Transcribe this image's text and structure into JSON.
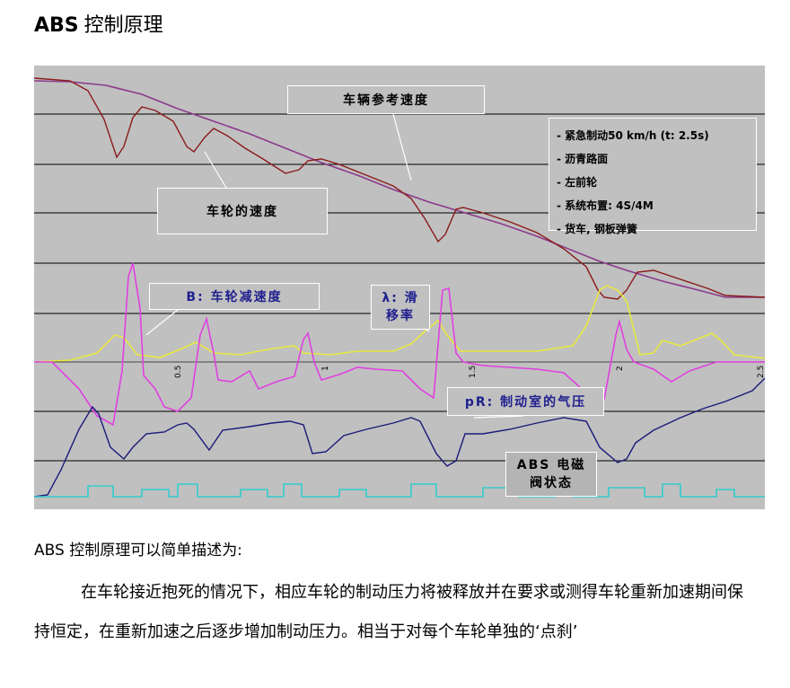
{
  "title": {
    "latin": "ABS",
    "cn": "控制原理"
  },
  "figure": {
    "labels": {
      "vehicle_speed": "车辆参考速度",
      "wheel_speed": "车轮的速度",
      "wheel_decel": "B: 车轮减速度",
      "slip_rate_1": "λ: 滑",
      "slip_rate_2": "移率",
      "chamber_pressure": "pR: 制动室的气压",
      "abs_valve_1": "ABS 电磁",
      "abs_valve_2": "阀状态"
    },
    "info": [
      "- 紧急制动50 km/h (t: 2.5s)",
      "- 沥青路面",
      "- 左前轮",
      "- 系统布置: 4S/4M",
      "- 货车, 钢板弹簧"
    ],
    "time_ticks": [
      "0.5",
      "1",
      "1.5",
      "2",
      "2.5"
    ],
    "colors": {
      "background": "#c0c0c0",
      "gridline": "#000000",
      "vehicle_speed": "#8b3a8b",
      "wheel_speed": "#8b1a1a",
      "wheel_decel": "#e040e0",
      "slip_rate": "#e8e840",
      "chamber_pressure": "#1a1a7a",
      "abs_valve": "#33cccc"
    }
  },
  "caption": "ABS 控制原理可以简单描述为:",
  "paragraph": "在车轮接近抱死的情况下，相应车轮的制动压力将被释放并在要求或测得车轮重新加速期间保持恒定，在重新加速之后逐步增加制动压力。相当于对每个车轮单独的‘点刹’"
}
